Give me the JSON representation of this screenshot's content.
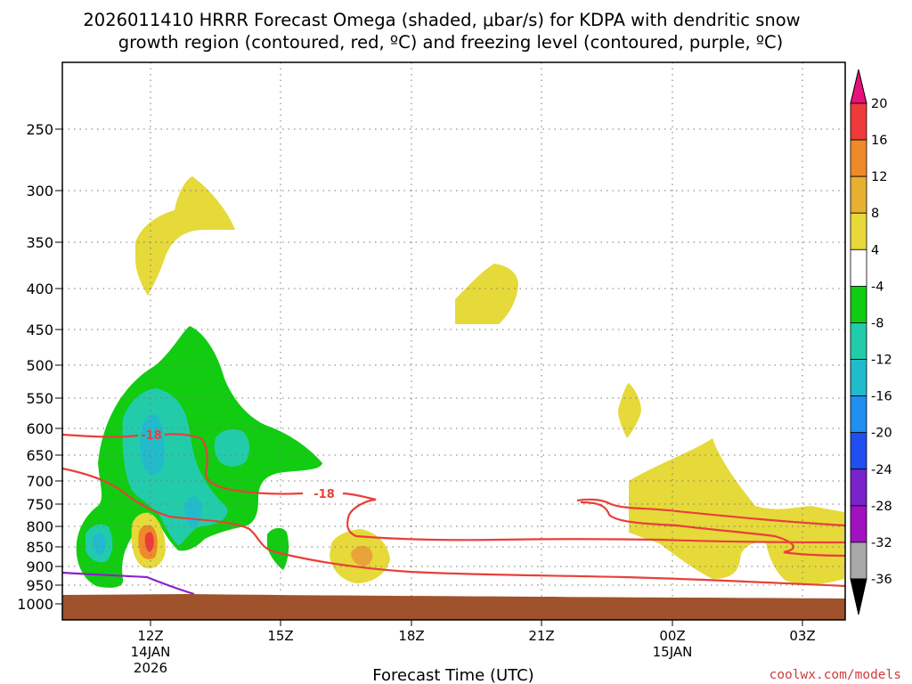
{
  "chart_data": {
    "type": "contour",
    "title_line1": "2026011410 HRRR Forecast Omega (shaded, μbar/s) for KDPA with dendritic snow",
    "title_line2": "growth region (contoured, red, ºC) and freezing level (contoured, purple, ºC)",
    "xlabel": "Forecast Time (UTC)",
    "credit": "coolwx.com/models",
    "y_ticks": [
      "250",
      "300",
      "350",
      "400",
      "450",
      "500",
      "550",
      "600",
      "650",
      "700",
      "750",
      "800",
      "850",
      "900",
      "950",
      "1000"
    ],
    "x_ticks": [
      {
        "label": "12Z",
        "sub1": "14JAN",
        "sub2": "2026"
      },
      {
        "label": "15Z",
        "sub1": "",
        "sub2": ""
      },
      {
        "label": "18Z",
        "sub1": "",
        "sub2": ""
      },
      {
        "label": "21Z",
        "sub1": "",
        "sub2": ""
      },
      {
        "label": "00Z",
        "sub1": "15JAN",
        "sub2": ""
      },
      {
        "label": "03Z",
        "sub1": "",
        "sub2": ""
      }
    ],
    "contour_labels": [
      "-18",
      "-18"
    ],
    "colorbar": {
      "levels": [
        "20",
        "16",
        "12",
        "8",
        "4",
        "-4",
        "-8",
        "-12",
        "-16",
        "-20",
        "-24",
        "-28",
        "-32",
        "-36"
      ],
      "colors": [
        "#ee3a3a",
        "#ee8a2a",
        "#e8b030",
        "#e8d83a",
        "#ffffff",
        "#11cc11",
        "#22ccaa",
        "#22bbcc",
        "#1f8ff0",
        "#1f4ff0",
        "#7a22cc",
        "#a111c0",
        "#a8a8a8",
        "#000000"
      ],
      "top_arrow_color": "#e8107a",
      "bottom_arrow_color": "#000000"
    }
  }
}
